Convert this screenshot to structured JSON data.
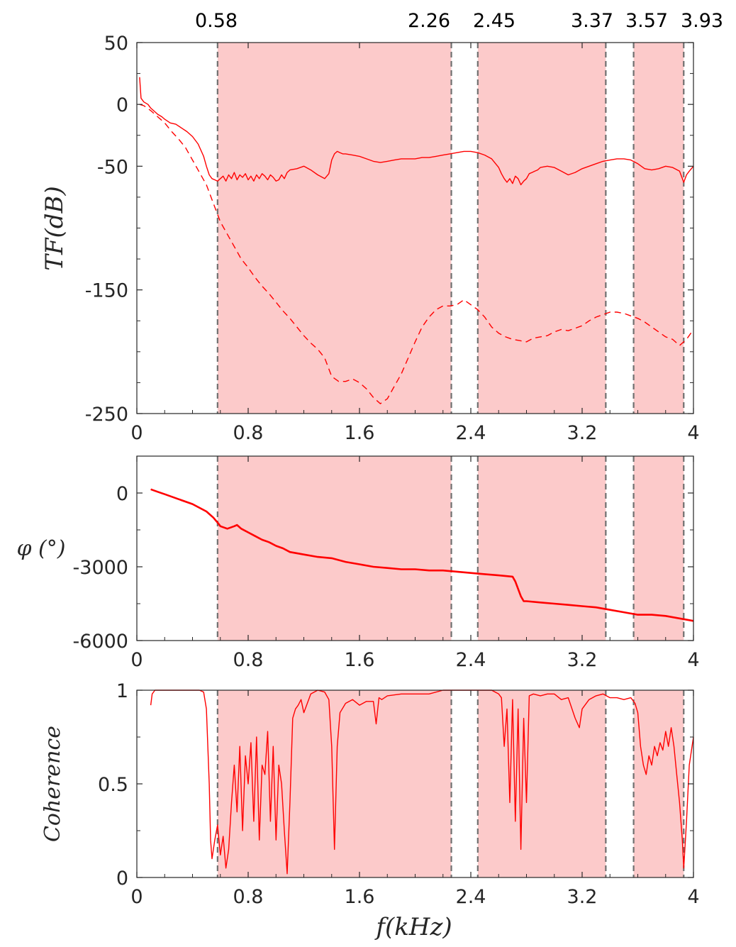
{
  "colors": {
    "band": "#fccaca",
    "trace": "#ff0000",
    "boundary": "#707070",
    "axis": "#262626"
  },
  "boundary_labels": [
    "0.58",
    "2.26",
    "2.45",
    "3.37",
    "3.57",
    "3.93"
  ],
  "chart_data": [
    {
      "type": "line",
      "id": "tf",
      "ylabel": "TF(dB)",
      "xlabel": "",
      "xlim": [
        0,
        4
      ],
      "ylim": [
        -250,
        50
      ],
      "x_ticks": [
        0,
        0.8,
        1.6,
        2.4,
        3.2,
        4
      ],
      "x_tick_labels": [
        "0",
        "0.8",
        "1.6",
        "2.4",
        "3.2",
        "4"
      ],
      "y_ticks": [
        50,
        0,
        -50,
        -150,
        -250
      ],
      "y_tick_labels": [
        "50",
        "0",
        "-50",
        "-150",
        "-250"
      ],
      "y_minor_ticks": [
        25,
        -25,
        -75,
        -100,
        -125,
        -175,
        -200,
        -225
      ],
      "boundaries": [
        0.58,
        2.26,
        2.45,
        3.37,
        3.57,
        3.93
      ],
      "shaded_bands": [
        [
          0.58,
          2.26
        ],
        [
          2.45,
          3.37
        ],
        [
          3.57,
          3.93
        ]
      ],
      "grid": false,
      "series": [
        {
          "style": "solid",
          "x": [
            0.02,
            0.03,
            0.05,
            0.08,
            0.1,
            0.12,
            0.15,
            0.18,
            0.2,
            0.24,
            0.28,
            0.32,
            0.36,
            0.4,
            0.44,
            0.48,
            0.5,
            0.52,
            0.54,
            0.56,
            0.58,
            0.6,
            0.62,
            0.64,
            0.66,
            0.68,
            0.7,
            0.72,
            0.74,
            0.76,
            0.78,
            0.8,
            0.82,
            0.84,
            0.86,
            0.88,
            0.9,
            0.92,
            0.94,
            0.96,
            0.98,
            1.0,
            1.02,
            1.04,
            1.06,
            1.08,
            1.1,
            1.15,
            1.2,
            1.25,
            1.3,
            1.35,
            1.38,
            1.4,
            1.42,
            1.44,
            1.46,
            1.48,
            1.5,
            1.55,
            1.6,
            1.65,
            1.7,
            1.75,
            1.8,
            1.85,
            1.9,
            1.95,
            2.0,
            2.05,
            2.1,
            2.15,
            2.2,
            2.25,
            2.3,
            2.35,
            2.4,
            2.45,
            2.5,
            2.55,
            2.6,
            2.62,
            2.64,
            2.66,
            2.68,
            2.7,
            2.72,
            2.74,
            2.76,
            2.78,
            2.8,
            2.82,
            2.84,
            2.86,
            2.88,
            2.9,
            2.95,
            3.0,
            3.05,
            3.1,
            3.15,
            3.2,
            3.25,
            3.3,
            3.35,
            3.4,
            3.45,
            3.5,
            3.55,
            3.6,
            3.65,
            3.7,
            3.75,
            3.8,
            3.85,
            3.9,
            3.93,
            3.95,
            3.97,
            4.0
          ],
          "y": [
            22,
            5,
            2,
            0,
            -3,
            -5,
            -8,
            -10,
            -12,
            -15,
            -16,
            -19,
            -22,
            -26,
            -32,
            -42,
            -50,
            -57,
            -60,
            -61,
            -62,
            -60,
            -58,
            -62,
            -57,
            -60,
            -55,
            -61,
            -57,
            -59,
            -56,
            -61,
            -58,
            -62,
            -57,
            -60,
            -56,
            -58,
            -61,
            -57,
            -59,
            -62,
            -61,
            -57,
            -60,
            -55,
            -53,
            -52,
            -50,
            -53,
            -57,
            -60,
            -56,
            -45,
            -40,
            -38,
            -39,
            -40,
            -40,
            -41,
            -42,
            -44,
            -46,
            -47,
            -46,
            -45,
            -44,
            -44,
            -44,
            -43,
            -43,
            -42,
            -41,
            -40,
            -39,
            -38,
            -38,
            -39,
            -41,
            -44,
            -51,
            -56,
            -60,
            -63,
            -60,
            -64,
            -58,
            -60,
            -65,
            -62,
            -60,
            -56,
            -55,
            -54,
            -53,
            -51,
            -50,
            -51,
            -54,
            -57,
            -55,
            -52,
            -50,
            -48,
            -46,
            -45,
            -44,
            -44,
            -45,
            -48,
            -52,
            -53,
            -52,
            -50,
            -51,
            -54,
            -63,
            -57,
            -54,
            -50
          ]
        },
        {
          "style": "dashed",
          "x": [
            0.02,
            0.05,
            0.1,
            0.15,
            0.2,
            0.25,
            0.3,
            0.35,
            0.4,
            0.45,
            0.5,
            0.55,
            0.6,
            0.65,
            0.7,
            0.75,
            0.8,
            0.85,
            0.9,
            0.95,
            1.0,
            1.05,
            1.1,
            1.15,
            1.2,
            1.25,
            1.3,
            1.35,
            1.4,
            1.45,
            1.5,
            1.55,
            1.6,
            1.65,
            1.7,
            1.75,
            1.8,
            1.85,
            1.9,
            1.95,
            2.0,
            2.05,
            2.1,
            2.15,
            2.2,
            2.25,
            2.3,
            2.35,
            2.4,
            2.45,
            2.5,
            2.55,
            2.6,
            2.65,
            2.7,
            2.75,
            2.8,
            2.85,
            2.9,
            2.95,
            3.0,
            3.05,
            3.1,
            3.15,
            3.2,
            3.25,
            3.3,
            3.35,
            3.4,
            3.45,
            3.5,
            3.55,
            3.6,
            3.65,
            3.7,
            3.75,
            3.8,
            3.85,
            3.9,
            3.95,
            4.0
          ],
          "y": [
            0,
            -1,
            -5,
            -10,
            -15,
            -22,
            -28,
            -35,
            -45,
            -55,
            -65,
            -80,
            -95,
            -105,
            -115,
            -125,
            -132,
            -140,
            -147,
            -153,
            -160,
            -167,
            -173,
            -180,
            -187,
            -193,
            -198,
            -205,
            -220,
            -224,
            -224,
            -222,
            -225,
            -230,
            -237,
            -242,
            -238,
            -228,
            -218,
            -205,
            -192,
            -180,
            -172,
            -166,
            -163,
            -163,
            -162,
            -158,
            -162,
            -166,
            -172,
            -180,
            -185,
            -188,
            -190,
            -191,
            -192,
            -189,
            -188,
            -187,
            -184,
            -182,
            -183,
            -181,
            -179,
            -175,
            -172,
            -170,
            -168,
            -168,
            -169,
            -171,
            -173,
            -176,
            -180,
            -184,
            -188,
            -190,
            -195,
            -190,
            -182
          ]
        }
      ]
    },
    {
      "type": "line",
      "id": "phase",
      "ylabel": "φ (°)",
      "xlabel": "",
      "xlim": [
        0,
        4
      ],
      "ylim": [
        -6000,
        1500
      ],
      "x_ticks": [
        0,
        0.8,
        1.6,
        2.4,
        3.2,
        4
      ],
      "x_tick_labels": [
        "0",
        "0.8",
        "1.6",
        "2.4",
        "3.2",
        "4"
      ],
      "y_ticks": [
        0,
        -3000,
        -6000
      ],
      "y_tick_labels": [
        "0",
        "-3000",
        "-6000"
      ],
      "y_minor_ticks": [
        1500,
        -1500,
        -4500
      ],
      "boundaries": [
        0.58,
        2.26,
        2.45,
        3.37,
        3.57,
        3.93
      ],
      "shaded_bands": [
        [
          0.58,
          2.26
        ],
        [
          2.45,
          3.37
        ],
        [
          3.57,
          3.93
        ]
      ],
      "grid": false,
      "series": [
        {
          "style": "solid",
          "x": [
            0.1,
            0.15,
            0.2,
            0.3,
            0.4,
            0.5,
            0.55,
            0.58,
            0.6,
            0.65,
            0.7,
            0.72,
            0.75,
            0.8,
            0.85,
            0.9,
            0.95,
            1.0,
            1.05,
            1.1,
            1.2,
            1.3,
            1.4,
            1.5,
            1.6,
            1.7,
            1.8,
            1.9,
            2.0,
            2.1,
            2.2,
            2.3,
            2.4,
            2.5,
            2.6,
            2.7,
            2.72,
            2.74,
            2.76,
            2.78,
            2.8,
            2.9,
            3.0,
            3.1,
            3.2,
            3.3,
            3.4,
            3.5,
            3.6,
            3.7,
            3.8,
            3.9,
            4.0
          ],
          "y": [
            150,
            50,
            -50,
            -250,
            -450,
            -750,
            -1000,
            -1200,
            -1350,
            -1450,
            -1350,
            -1300,
            -1450,
            -1600,
            -1750,
            -1900,
            -2000,
            -2150,
            -2250,
            -2400,
            -2500,
            -2600,
            -2650,
            -2800,
            -2900,
            -3000,
            -3050,
            -3100,
            -3100,
            -3150,
            -3150,
            -3200,
            -3250,
            -3300,
            -3350,
            -3400,
            -3600,
            -3900,
            -4200,
            -4400,
            -4400,
            -4450,
            -4500,
            -4550,
            -4600,
            -4650,
            -4750,
            -4850,
            -4950,
            -4950,
            -5000,
            -5100,
            -5200
          ]
        }
      ]
    },
    {
      "type": "line",
      "id": "coherence",
      "ylabel": "Coherence",
      "xlabel": "f(kHz)",
      "xlim": [
        0,
        4
      ],
      "ylim": [
        0,
        1
      ],
      "x_ticks": [
        0,
        0.8,
        1.6,
        2.4,
        3.2,
        4
      ],
      "x_tick_labels": [
        "0",
        "0.8",
        "1.6",
        "2.4",
        "3.2",
        "4"
      ],
      "y_ticks": [
        0,
        0.5,
        1
      ],
      "y_tick_labels": [
        "0",
        "0.5",
        "1"
      ],
      "y_minor_ticks": [
        0.25,
        0.75
      ],
      "boundaries": [
        0.58,
        2.26,
        2.45,
        3.37,
        3.57,
        3.93
      ],
      "shaded_bands": [
        [
          0.58,
          2.26
        ],
        [
          2.45,
          3.37
        ],
        [
          3.57,
          3.93
        ]
      ],
      "grid": false,
      "series": [
        {
          "style": "solid",
          "x": [
            0.1,
            0.11,
            0.13,
            0.2,
            0.3,
            0.4,
            0.45,
            0.48,
            0.5,
            0.52,
            0.53,
            0.54,
            0.56,
            0.58,
            0.6,
            0.62,
            0.64,
            0.66,
            0.68,
            0.7,
            0.72,
            0.74,
            0.76,
            0.78,
            0.8,
            0.82,
            0.84,
            0.86,
            0.88,
            0.9,
            0.92,
            0.94,
            0.96,
            0.98,
            1.0,
            1.02,
            1.04,
            1.06,
            1.08,
            1.1,
            1.12,
            1.14,
            1.16,
            1.18,
            1.2,
            1.25,
            1.3,
            1.35,
            1.38,
            1.4,
            1.42,
            1.44,
            1.46,
            1.5,
            1.55,
            1.6,
            1.65,
            1.7,
            1.72,
            1.74,
            1.76,
            1.8,
            1.9,
            2.0,
            2.1,
            2.2,
            2.3,
            2.4,
            2.5,
            2.55,
            2.6,
            2.62,
            2.64,
            2.66,
            2.68,
            2.7,
            2.72,
            2.74,
            2.76,
            2.78,
            2.8,
            2.82,
            2.85,
            2.9,
            2.95,
            3.0,
            3.05,
            3.1,
            3.15,
            3.18,
            3.2,
            3.25,
            3.3,
            3.35,
            3.4,
            3.45,
            3.5,
            3.55,
            3.58,
            3.6,
            3.62,
            3.64,
            3.66,
            3.68,
            3.7,
            3.72,
            3.74,
            3.76,
            3.78,
            3.8,
            3.82,
            3.84,
            3.86,
            3.88,
            3.9,
            3.92,
            3.93,
            3.95,
            3.97,
            4.0
          ],
          "y": [
            0.92,
            0.98,
            1.0,
            1.0,
            1.0,
            1.0,
            1.0,
            0.99,
            0.9,
            0.5,
            0.2,
            0.1,
            0.2,
            0.28,
            0.12,
            0.22,
            0.05,
            0.15,
            0.4,
            0.6,
            0.35,
            0.7,
            0.25,
            0.65,
            0.5,
            0.72,
            0.3,
            0.75,
            0.2,
            0.6,
            0.55,
            0.78,
            0.3,
            0.7,
            0.2,
            0.6,
            0.5,
            0.25,
            0.02,
            0.4,
            0.85,
            0.9,
            0.92,
            0.95,
            0.88,
            0.98,
            1.0,
            0.99,
            0.95,
            0.7,
            0.15,
            0.7,
            0.88,
            0.93,
            0.95,
            0.92,
            0.94,
            0.94,
            0.82,
            0.96,
            0.95,
            0.97,
            0.98,
            0.98,
            0.98,
            1.0,
            1.0,
            1.0,
            1.0,
            1.0,
            0.98,
            0.96,
            0.7,
            0.9,
            0.4,
            0.95,
            0.3,
            0.9,
            0.15,
            0.85,
            0.4,
            0.97,
            0.98,
            0.97,
            0.98,
            0.98,
            0.95,
            0.96,
            0.85,
            0.8,
            0.9,
            0.95,
            0.97,
            0.98,
            0.96,
            0.96,
            0.95,
            0.96,
            0.93,
            0.88,
            0.7,
            0.6,
            0.55,
            0.65,
            0.6,
            0.7,
            0.65,
            0.72,
            0.68,
            0.78,
            0.7,
            0.8,
            0.7,
            0.55,
            0.4,
            0.2,
            0.05,
            0.3,
            0.6,
            0.75
          ]
        }
      ]
    }
  ]
}
